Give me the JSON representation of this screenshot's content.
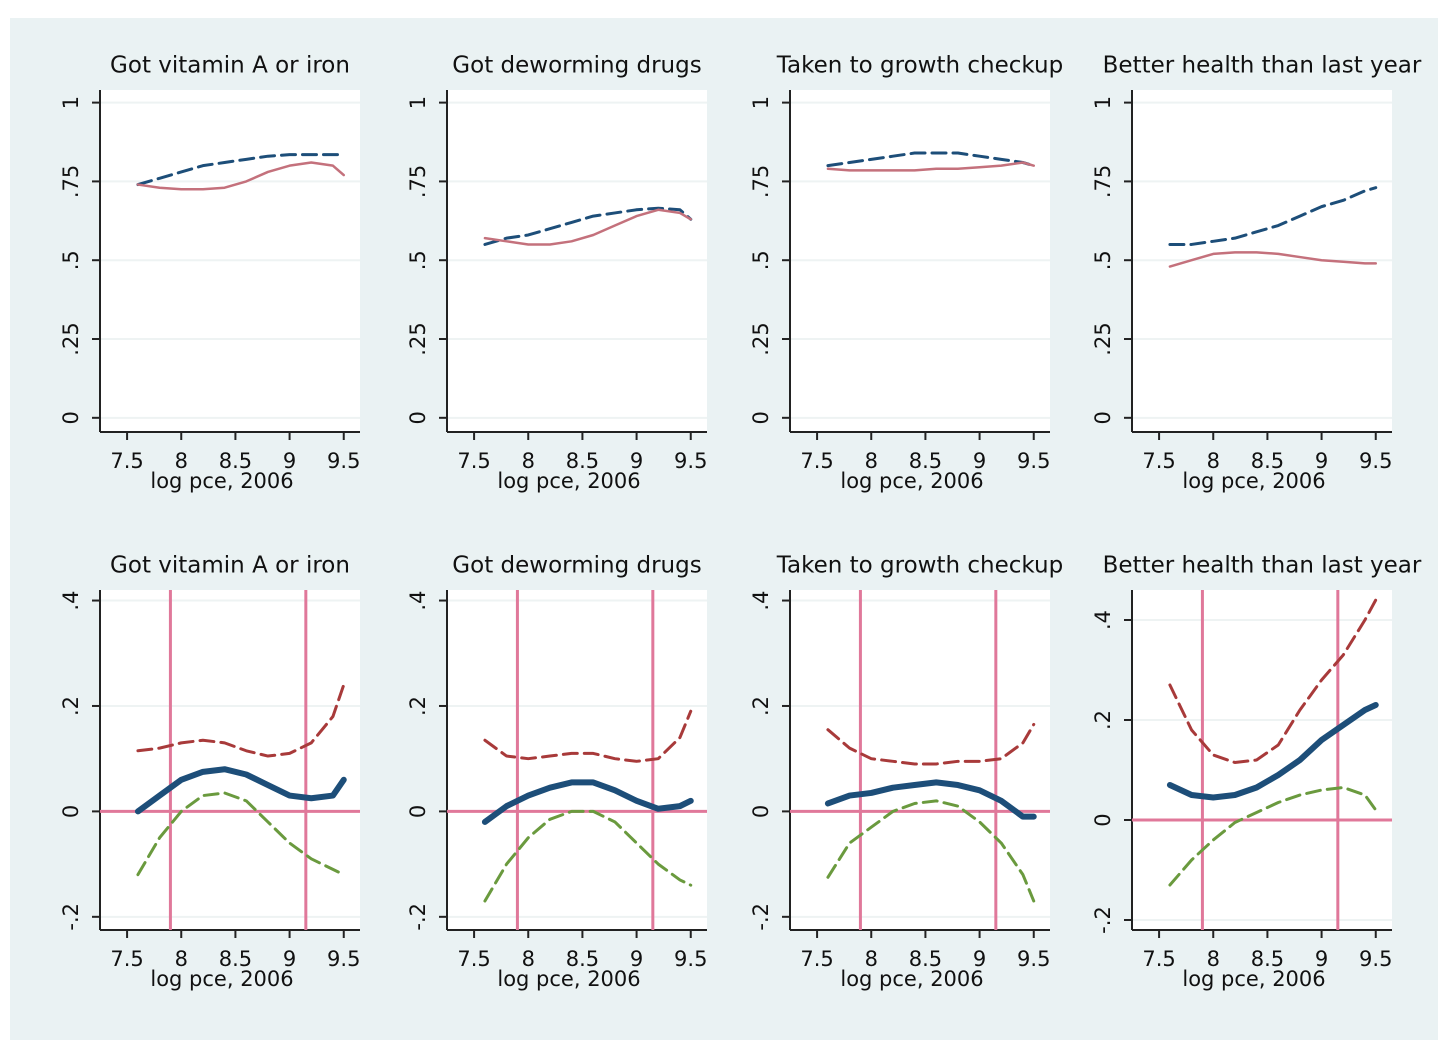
{
  "chart_data": [
    {
      "type": "line",
      "title": "Got vitamin A or iron",
      "xlabel": "log pce, 2006",
      "x": [
        7.6,
        7.8,
        8.0,
        8.2,
        8.4,
        8.6,
        8.8,
        9.0,
        9.2,
        9.4,
        9.5
      ],
      "xlim": [
        7.25,
        9.65
      ],
      "xticks": [
        7.5,
        8,
        8.5,
        9,
        9.5
      ],
      "ylim": [
        -0.045,
        1.04
      ],
      "yticks": [
        0,
        {
          "value": 0.25,
          "label": ".25"
        },
        {
          "value": 0.5,
          "label": ".5"
        },
        {
          "value": 0.75,
          "label": ".75"
        },
        1
      ],
      "grid": true,
      "series": [
        {
          "color": "#1d4e79",
          "style": "dashed",
          "values": [
            0.74,
            0.76,
            0.78,
            0.8,
            0.81,
            0.82,
            0.83,
            0.835,
            0.835,
            0.835,
            0.835
          ]
        },
        {
          "color": "#c4717c",
          "style": "solid",
          "values": [
            0.74,
            0.73,
            0.725,
            0.725,
            0.73,
            0.75,
            0.78,
            0.8,
            0.81,
            0.8,
            0.77
          ]
        }
      ]
    },
    {
      "type": "line",
      "title": "Got deworming drugs",
      "xlabel": "log pce, 2006",
      "x": [
        7.6,
        7.8,
        8.0,
        8.2,
        8.4,
        8.6,
        8.8,
        9.0,
        9.2,
        9.4,
        9.5
      ],
      "xlim": [
        7.25,
        9.65
      ],
      "xticks": [
        7.5,
        8,
        8.5,
        9,
        9.5
      ],
      "ylim": [
        -0.045,
        1.04
      ],
      "yticks": [
        0,
        {
          "value": 0.25,
          "label": ".25"
        },
        {
          "value": 0.5,
          "label": ".5"
        },
        {
          "value": 0.75,
          "label": ".75"
        },
        1
      ],
      "grid": true,
      "series": [
        {
          "color": "#1d4e79",
          "style": "dashed",
          "values": [
            0.55,
            0.57,
            0.58,
            0.6,
            0.62,
            0.64,
            0.65,
            0.66,
            0.665,
            0.66,
            0.63
          ]
        },
        {
          "color": "#c4717c",
          "style": "solid",
          "values": [
            0.57,
            0.56,
            0.55,
            0.55,
            0.56,
            0.58,
            0.61,
            0.64,
            0.66,
            0.65,
            0.63
          ]
        }
      ]
    },
    {
      "type": "line",
      "title": "Taken to growth checkup",
      "xlabel": "log pce, 2006",
      "x": [
        7.6,
        7.8,
        8.0,
        8.2,
        8.4,
        8.6,
        8.8,
        9.0,
        9.2,
        9.4,
        9.5
      ],
      "xlim": [
        7.25,
        9.65
      ],
      "xticks": [
        7.5,
        8,
        8.5,
        9,
        9.5
      ],
      "ylim": [
        -0.045,
        1.04
      ],
      "yticks": [
        0,
        {
          "value": 0.25,
          "label": ".25"
        },
        {
          "value": 0.5,
          "label": ".5"
        },
        {
          "value": 0.75,
          "label": ".75"
        },
        1
      ],
      "grid": true,
      "series": [
        {
          "color": "#1d4e79",
          "style": "dashed",
          "values": [
            0.8,
            0.81,
            0.82,
            0.83,
            0.84,
            0.84,
            0.84,
            0.83,
            0.82,
            0.81,
            0.8
          ]
        },
        {
          "color": "#c4717c",
          "style": "solid",
          "values": [
            0.79,
            0.785,
            0.785,
            0.785,
            0.785,
            0.79,
            0.79,
            0.795,
            0.8,
            0.81,
            0.8
          ]
        }
      ]
    },
    {
      "type": "line",
      "title": "Better health than last year",
      "xlabel": "log pce, 2006",
      "x": [
        7.6,
        7.8,
        8.0,
        8.2,
        8.4,
        8.6,
        8.8,
        9.0,
        9.2,
        9.4,
        9.5
      ],
      "xlim": [
        7.25,
        9.65
      ],
      "xticks": [
        7.5,
        8,
        8.5,
        9,
        9.5
      ],
      "ylim": [
        -0.045,
        1.04
      ],
      "yticks": [
        0,
        {
          "value": 0.25,
          "label": ".25"
        },
        {
          "value": 0.5,
          "label": ".5"
        },
        {
          "value": 0.75,
          "label": ".75"
        },
        1
      ],
      "grid": true,
      "series": [
        {
          "color": "#1d4e79",
          "style": "dashed",
          "values": [
            0.55,
            0.55,
            0.56,
            0.57,
            0.59,
            0.61,
            0.64,
            0.67,
            0.69,
            0.72,
            0.73
          ]
        },
        {
          "color": "#c4717c",
          "style": "solid",
          "values": [
            0.48,
            0.5,
            0.52,
            0.525,
            0.525,
            0.52,
            0.51,
            0.5,
            0.495,
            0.49,
            0.49
          ]
        }
      ]
    },
    {
      "type": "line",
      "title": "Got vitamin A or iron",
      "xlabel": "log pce, 2006",
      "x": [
        7.6,
        7.8,
        8.0,
        8.2,
        8.4,
        8.6,
        8.8,
        9.0,
        9.2,
        9.4,
        9.5
      ],
      "xlim": [
        7.25,
        9.65
      ],
      "xticks": [
        7.5,
        8,
        8.5,
        9,
        9.5
      ],
      "ylim": [
        -0.225,
        0.42
      ],
      "yticks": [
        {
          "value": -0.2,
          "label": "-.2"
        },
        0,
        {
          "value": 0.2,
          "label": ".2"
        },
        {
          "value": 0.4,
          "label": ".4"
        }
      ],
      "grid": true,
      "reference_lines": {
        "x": [
          7.9,
          9.15
        ],
        "y": [
          0
        ],
        "color": "#e0789a"
      },
      "series": [
        {
          "color": "#1d4e79",
          "style": "thick",
          "values": [
            0,
            0.03,
            0.06,
            0.075,
            0.08,
            0.07,
            0.05,
            0.03,
            0.025,
            0.03,
            0.06
          ]
        },
        {
          "color": "#a83a3a",
          "style": "dashed",
          "values": [
            0.115,
            0.12,
            0.13,
            0.135,
            0.13,
            0.115,
            0.105,
            0.11,
            0.13,
            0.18,
            0.24
          ]
        },
        {
          "color": "#6a9a3e",
          "style": "dashed",
          "values": [
            -0.12,
            -0.05,
            0,
            0.03,
            0.035,
            0.02,
            -0.02,
            -0.06,
            -0.09,
            -0.11,
            -0.12
          ]
        }
      ]
    },
    {
      "type": "line",
      "title": "Got deworming drugs",
      "xlabel": "log pce, 2006",
      "x": [
        7.6,
        7.8,
        8.0,
        8.2,
        8.4,
        8.6,
        8.8,
        9.0,
        9.2,
        9.4,
        9.5
      ],
      "xlim": [
        7.25,
        9.65
      ],
      "xticks": [
        7.5,
        8,
        8.5,
        9,
        9.5
      ],
      "ylim": [
        -0.225,
        0.42
      ],
      "yticks": [
        {
          "value": -0.2,
          "label": "-.2"
        },
        0,
        {
          "value": 0.2,
          "label": ".2"
        },
        {
          "value": 0.4,
          "label": ".4"
        }
      ],
      "grid": true,
      "reference_lines": {
        "x": [
          7.9,
          9.15
        ],
        "y": [
          0
        ],
        "color": "#e0789a"
      },
      "series": [
        {
          "color": "#1d4e79",
          "style": "thick",
          "values": [
            -0.02,
            0.01,
            0.03,
            0.045,
            0.055,
            0.055,
            0.04,
            0.02,
            0.005,
            0.01,
            0.02
          ]
        },
        {
          "color": "#a83a3a",
          "style": "dashed",
          "values": [
            0.135,
            0.105,
            0.1,
            0.105,
            0.11,
            0.11,
            0.1,
            0.095,
            0.1,
            0.14,
            0.19
          ]
        },
        {
          "color": "#6a9a3e",
          "style": "dashed",
          "values": [
            -0.17,
            -0.1,
            -0.05,
            -0.015,
            0,
            0,
            -0.02,
            -0.06,
            -0.1,
            -0.13,
            -0.14
          ]
        }
      ]
    },
    {
      "type": "line",
      "title": "Taken to growth checkup",
      "xlabel": "log pce, 2006",
      "x": [
        7.6,
        7.8,
        8.0,
        8.2,
        8.4,
        8.6,
        8.8,
        9.0,
        9.2,
        9.4,
        9.5
      ],
      "xlim": [
        7.25,
        9.65
      ],
      "xticks": [
        7.5,
        8,
        8.5,
        9,
        9.5
      ],
      "ylim": [
        -0.225,
        0.42
      ],
      "yticks": [
        {
          "value": -0.2,
          "label": "-.2"
        },
        0,
        {
          "value": 0.2,
          "label": ".2"
        },
        {
          "value": 0.4,
          "label": ".4"
        }
      ],
      "grid": true,
      "reference_lines": {
        "x": [
          7.9,
          9.15
        ],
        "y": [
          0
        ],
        "color": "#e0789a"
      },
      "series": [
        {
          "color": "#1d4e79",
          "style": "thick",
          "values": [
            0.015,
            0.03,
            0.035,
            0.045,
            0.05,
            0.055,
            0.05,
            0.04,
            0.02,
            -0.01,
            -0.01
          ]
        },
        {
          "color": "#a83a3a",
          "style": "dashed",
          "values": [
            0.155,
            0.12,
            0.1,
            0.095,
            0.09,
            0.09,
            0.095,
            0.095,
            0.1,
            0.13,
            0.165
          ]
        },
        {
          "color": "#6a9a3e",
          "style": "dashed",
          "values": [
            -0.125,
            -0.06,
            -0.03,
            0,
            0.015,
            0.02,
            0.01,
            -0.02,
            -0.06,
            -0.12,
            -0.17
          ]
        }
      ]
    },
    {
      "type": "line",
      "title": "Better health than last year",
      "xlabel": "log pce, 2006",
      "x": [
        7.6,
        7.8,
        8.0,
        8.2,
        8.4,
        8.6,
        8.8,
        9.0,
        9.2,
        9.4,
        9.5
      ],
      "xlim": [
        7.25,
        9.65
      ],
      "xticks": [
        7.5,
        8,
        8.5,
        9,
        9.5
      ],
      "ylim": [
        -0.22,
        0.46
      ],
      "yticks": [
        {
          "value": -0.2,
          "label": "-.2"
        },
        0,
        {
          "value": 0.2,
          "label": ".2"
        },
        {
          "value": 0.4,
          "label": ".4"
        }
      ],
      "grid": true,
      "reference_lines": {
        "x": [
          7.9,
          9.15
        ],
        "y": [
          0
        ],
        "color": "#e0789a"
      },
      "series": [
        {
          "color": "#1d4e79",
          "style": "thick",
          "values": [
            0.07,
            0.05,
            0.045,
            0.05,
            0.065,
            0.09,
            0.12,
            0.16,
            0.19,
            0.22,
            0.23
          ]
        },
        {
          "color": "#a83a3a",
          "style": "dashed",
          "values": [
            0.27,
            0.18,
            0.13,
            0.115,
            0.12,
            0.15,
            0.22,
            0.28,
            0.33,
            0.4,
            0.44
          ]
        },
        {
          "color": "#6a9a3e",
          "style": "dashed",
          "values": [
            -0.13,
            -0.08,
            -0.04,
            -0.005,
            0.015,
            0.035,
            0.05,
            0.06,
            0.065,
            0.05,
            0.02
          ]
        }
      ]
    }
  ]
}
